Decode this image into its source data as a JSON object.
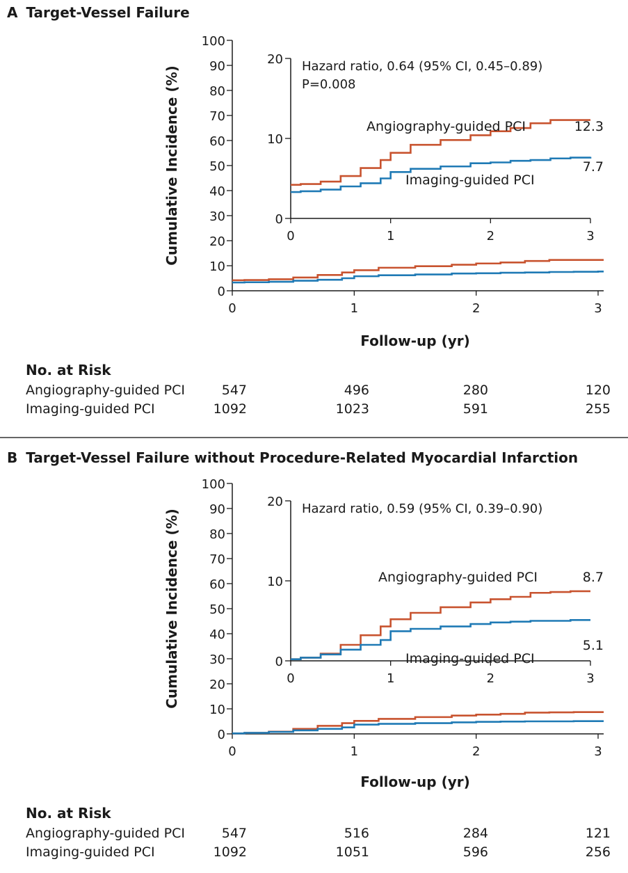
{
  "panels": [
    {
      "letter": "A",
      "title": "Target-Vessel Failure",
      "risk": {
        "heading": "No. at Risk",
        "rows": [
          {
            "label": "Angiography-guided PCI",
            "values": [
              "547",
              "496",
              "280",
              "120"
            ]
          },
          {
            "label": "Imaging-guided PCI",
            "values": [
              "1092",
              "1023",
              "591",
              "255"
            ]
          }
        ]
      }
    },
    {
      "letter": "B",
      "title": "Target-Vessel Failure without Procedure-Related Myocardial Infarction",
      "risk": {
        "heading": "No. at Risk",
        "rows": [
          {
            "label": "Angiography-guided PCI",
            "values": [
              "547",
              "516",
              "284",
              "121"
            ]
          },
          {
            "label": "Imaging-guided PCI",
            "values": [
              "1092",
              "1051",
              "596",
              "256"
            ]
          }
        ]
      }
    }
  ],
  "colors": {
    "angiography": "#c8532f",
    "imaging": "#1f7ab5",
    "axis": "#1a1a1a"
  },
  "chart_data": [
    {
      "type": "line",
      "panel": "A",
      "title": "Target-Vessel Failure",
      "xlabel": "Follow-up (yr)",
      "ylabel": "Cumulative Incidence (%)",
      "xlim": [
        0,
        3
      ],
      "ylim": [
        0,
        100
      ],
      "xticks": [
        0,
        1,
        2,
        3
      ],
      "yticks": [
        0,
        10,
        20,
        30,
        40,
        50,
        60,
        70,
        80,
        90,
        100
      ],
      "series": [
        {
          "name": "Angiography-guided PCI",
          "x": [
            0,
            0.1,
            0.3,
            0.5,
            0.7,
            0.9,
            1.0,
            1.2,
            1.5,
            1.8,
            2.0,
            2.2,
            2.4,
            2.6,
            2.8,
            3.0
          ],
          "values": [
            4.2,
            4.3,
            4.6,
            5.3,
            6.3,
            7.3,
            8.2,
            9.2,
            9.8,
            10.4,
            10.9,
            11.3,
            11.9,
            12.3,
            12.3,
            12.3
          ],
          "end_label": "12.3"
        },
        {
          "name": "Imaging-guided PCI",
          "x": [
            0,
            0.1,
            0.3,
            0.5,
            0.7,
            0.9,
            1.0,
            1.2,
            1.5,
            1.8,
            2.0,
            2.2,
            2.4,
            2.6,
            2.8,
            3.0
          ],
          "values": [
            3.3,
            3.4,
            3.6,
            4.0,
            4.4,
            5.0,
            5.8,
            6.2,
            6.5,
            6.9,
            7.0,
            7.2,
            7.3,
            7.5,
            7.6,
            7.7
          ],
          "end_label": "7.7"
        }
      ],
      "inset": {
        "xlim": [
          0,
          3
        ],
        "ylim": [
          0,
          20
        ],
        "xticks": [
          0,
          1,
          2,
          3
        ],
        "yticks": [
          0,
          10,
          20
        ],
        "annotations": [
          "Hazard ratio, 0.64 (95% CI, 0.45–0.89)",
          "P=0.008"
        ]
      }
    },
    {
      "type": "line",
      "panel": "B",
      "title": "Target-Vessel Failure without Procedure-Related Myocardial Infarction",
      "xlabel": "Follow-up (yr)",
      "ylabel": "Cumulative Incidence (%)",
      "xlim": [
        0,
        3
      ],
      "ylim": [
        0,
        100
      ],
      "xticks": [
        0,
        1,
        2,
        3
      ],
      "yticks": [
        0,
        10,
        20,
        30,
        40,
        50,
        60,
        70,
        80,
        90,
        100
      ],
      "series": [
        {
          "name": "Angiography-guided PCI",
          "x": [
            0,
            0.1,
            0.3,
            0.5,
            0.7,
            0.9,
            1.0,
            1.2,
            1.5,
            1.8,
            2.0,
            2.2,
            2.4,
            2.6,
            2.8,
            3.0
          ],
          "values": [
            0.2,
            0.4,
            0.9,
            2.0,
            3.2,
            4.3,
            5.2,
            6.0,
            6.7,
            7.3,
            7.7,
            8.0,
            8.5,
            8.6,
            8.7,
            8.7
          ],
          "end_label": "8.7"
        },
        {
          "name": "Imaging-guided PCI",
          "x": [
            0,
            0.1,
            0.3,
            0.5,
            0.7,
            0.9,
            1.0,
            1.2,
            1.5,
            1.8,
            2.0,
            2.2,
            2.4,
            2.6,
            2.8,
            3.0
          ],
          "values": [
            0.2,
            0.4,
            0.8,
            1.4,
            2.0,
            2.6,
            3.7,
            4.0,
            4.3,
            4.6,
            4.8,
            4.9,
            5.0,
            5.0,
            5.1,
            5.1
          ],
          "end_label": "5.1"
        }
      ],
      "inset": {
        "xlim": [
          0,
          3
        ],
        "ylim": [
          0,
          20
        ],
        "xticks": [
          0,
          1,
          2,
          3
        ],
        "yticks": [
          0,
          10,
          20
        ],
        "annotations": [
          "Hazard ratio, 0.59 (95% CI, 0.39–0.90)"
        ]
      }
    }
  ]
}
